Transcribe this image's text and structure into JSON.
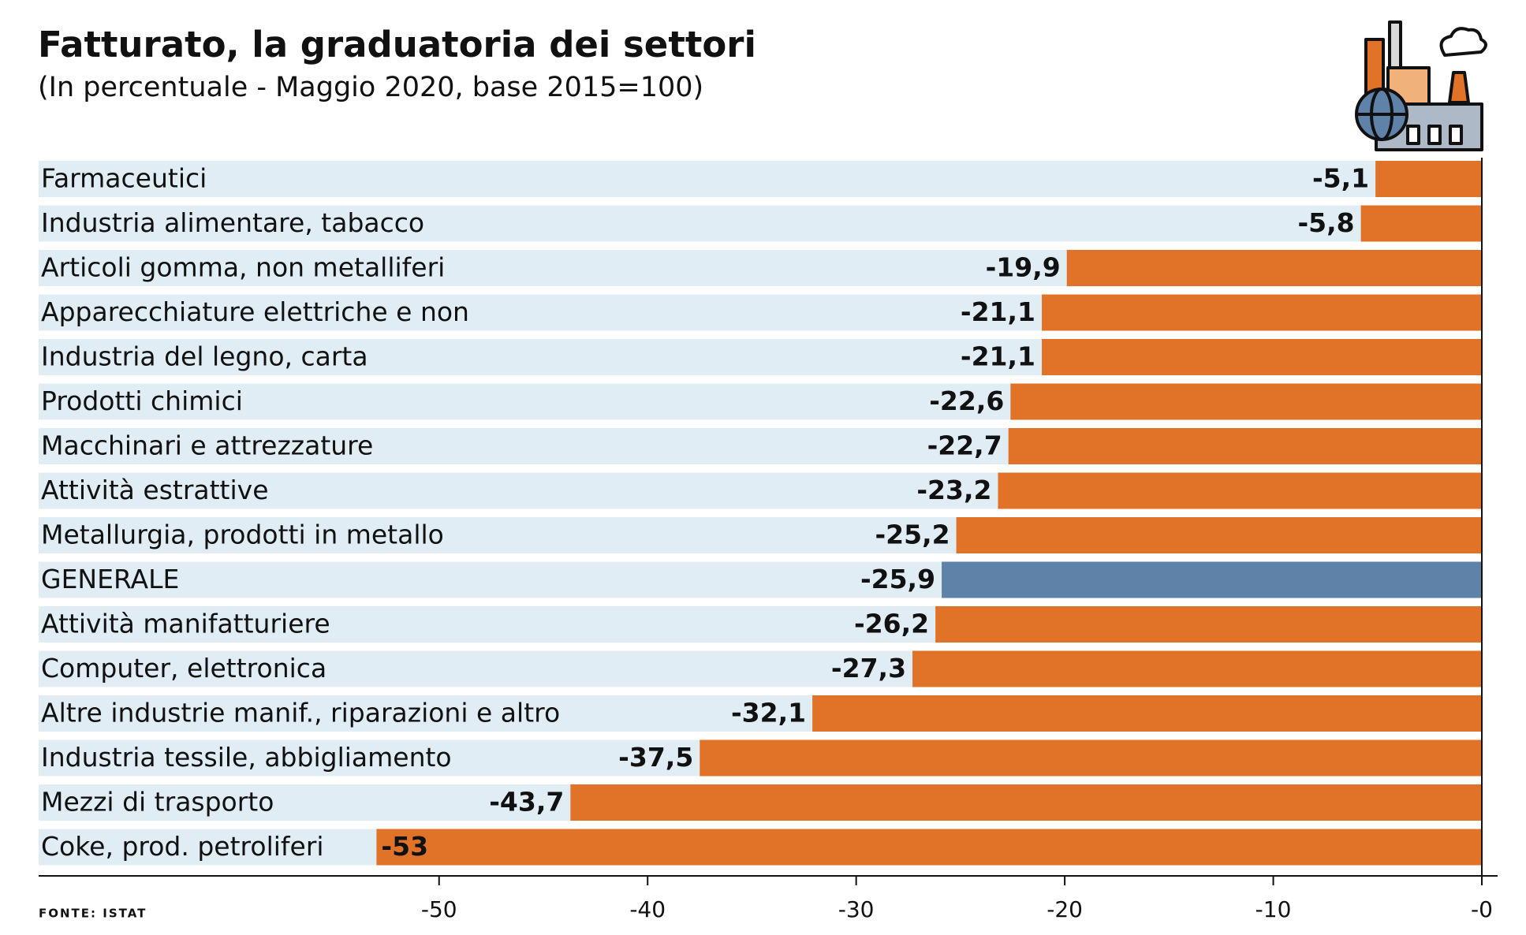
{
  "chart_data": {
    "type": "hbar",
    "title": "Fatturato, la graduatoria dei settori",
    "subtitle": "(In percentuale - Maggio 2020, base 2015=100)",
    "source": "FONTE: ISTAT",
    "categories": [
      "Farmaceutici",
      "Industria alimentare, tabacco",
      "Articoli gomma, non metalliferi",
      "Apparecchiature elettriche e non",
      "Industria del legno, carta",
      "Prodotti chimici",
      "Macchinari e attrezzature",
      "Attività estrattive",
      "Metallurgia, prodotti in metallo",
      "GENERALE",
      "Attività manifatturiere",
      "Computer, elettronica",
      "Altre industrie manif., riparazioni e altro",
      "Industria tessile, abbigliamento",
      "Mezzi di trasporto",
      "Coke, prod. petroliferi"
    ],
    "values": [
      -5.1,
      -5.8,
      -19.9,
      -21.1,
      -21.1,
      -22.6,
      -22.7,
      -23.2,
      -25.2,
      -25.9,
      -26.2,
      -27.3,
      -32.1,
      -37.5,
      -43.7,
      -53
    ],
    "value_labels": [
      "-5,1",
      "-5,8",
      "-19,9",
      "-21,1",
      "-21,1",
      "-22,6",
      "-22,7",
      "-23,2",
      "-25,2",
      "-25,9",
      "-26,2",
      "-27,3",
      "-32,1",
      "-37,5",
      "-43,7",
      "-53"
    ],
    "colors": [
      "#e07328",
      "#e07328",
      "#e07328",
      "#e07328",
      "#e07328",
      "#e07328",
      "#e07328",
      "#e07328",
      "#e07328",
      "#5e82a8",
      "#e07328",
      "#e07328",
      "#e07328",
      "#e07328",
      "#e07328",
      "#e07328"
    ],
    "row_background": "#e1edf5",
    "xlim": [
      -69.2,
      0
    ],
    "xticks": [
      -50,
      -40,
      -30,
      -20,
      -10,
      {
        "value": 0,
        "label": "-0"
      }
    ]
  }
}
